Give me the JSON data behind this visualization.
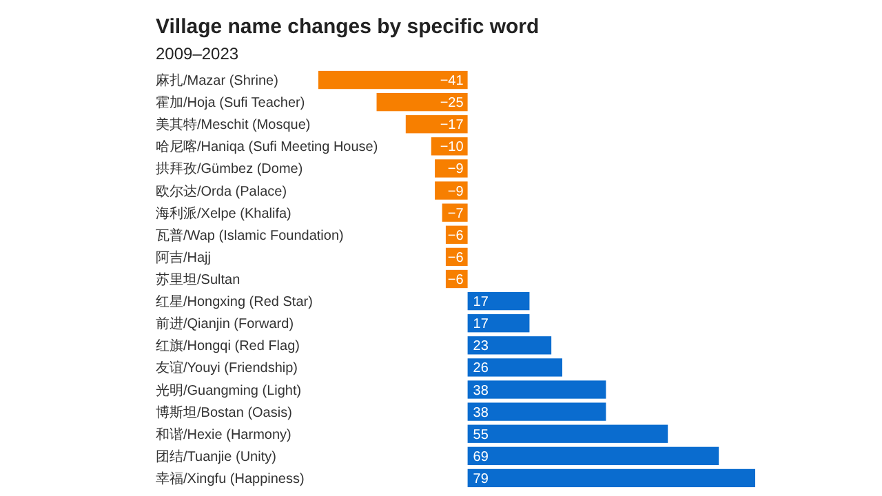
{
  "chart_data": {
    "type": "bar",
    "orientation": "horizontal",
    "title": "Village name changes by specific word",
    "subtitle": "2009–2023",
    "categories": [
      "麻扎/Mazar (Shrine)",
      "霍加/Hoja (Sufi Teacher)",
      "美其特/Meschit (Mosque)",
      "哈尼喀/Haniqa (Sufi Meeting House)",
      "拱拜孜/Gümbez (Dome)",
      "欧尔达/Orda (Palace)",
      "海利派/Xelpe (Khalifa)",
      "瓦普/Wap (Islamic Foundation)",
      "阿吉/Hajj",
      "苏里坦/Sultan",
      "红星/Hongxing (Red Star)",
      "前进/Qianjin (Forward)",
      "红旗/Hongqi (Red Flag)",
      "友谊/Youyi (Friendship)",
      "光明/Guangming (Light)",
      "博斯坦/Bostan (Oasis)",
      "和谐/Hexie (Harmony)",
      "团结/Tuanjie (Unity)",
      "幸福/Xingfu (Happiness)"
    ],
    "values": [
      -41,
      -25,
      -17,
      -10,
      -9,
      -9,
      -7,
      -6,
      -6,
      -6,
      17,
      17,
      23,
      26,
      38,
      38,
      55,
      69,
      79
    ],
    "colors": [
      "#f77f00",
      "#f77f00",
      "#f77f00",
      "#f77f00",
      "#f77f00",
      "#f77f00",
      "#f77f00",
      "#f77f00",
      "#f77f00",
      "#f77f00",
      "#0a6ccf",
      "#0a6ccf",
      "#0a6ccf",
      "#0a6ccf",
      "#0a6ccf",
      "#0a6ccf",
      "#0a6ccf",
      "#0a6ccf",
      "#0a6ccf"
    ],
    "data_labels": true
  }
}
